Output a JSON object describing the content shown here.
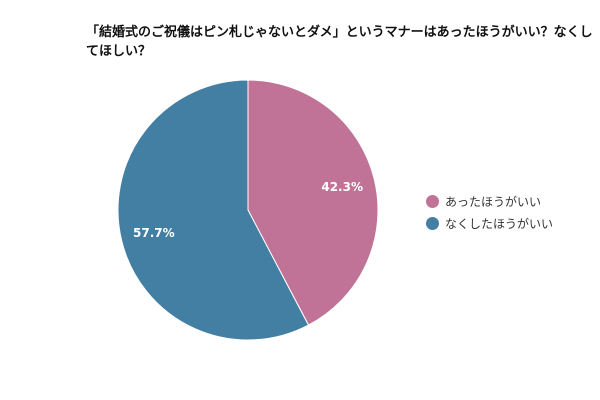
{
  "chart_data": {
    "type": "pie",
    "title": "「結婚式のご祝儀はピン札じゃないとダメ」というマナーはあったほうがいい？なくしてほしい？",
    "categories": [
      "あったほうがいい",
      "なくしたほうがいい"
    ],
    "values": [
      42.3,
      57.7
    ],
    "data_labels": [
      "42.3%",
      "57.7%"
    ],
    "colors": [
      "#c07396",
      "#427fa3"
    ],
    "start_angle": "top",
    "direction": "clockwise",
    "legend_position": "right"
  }
}
